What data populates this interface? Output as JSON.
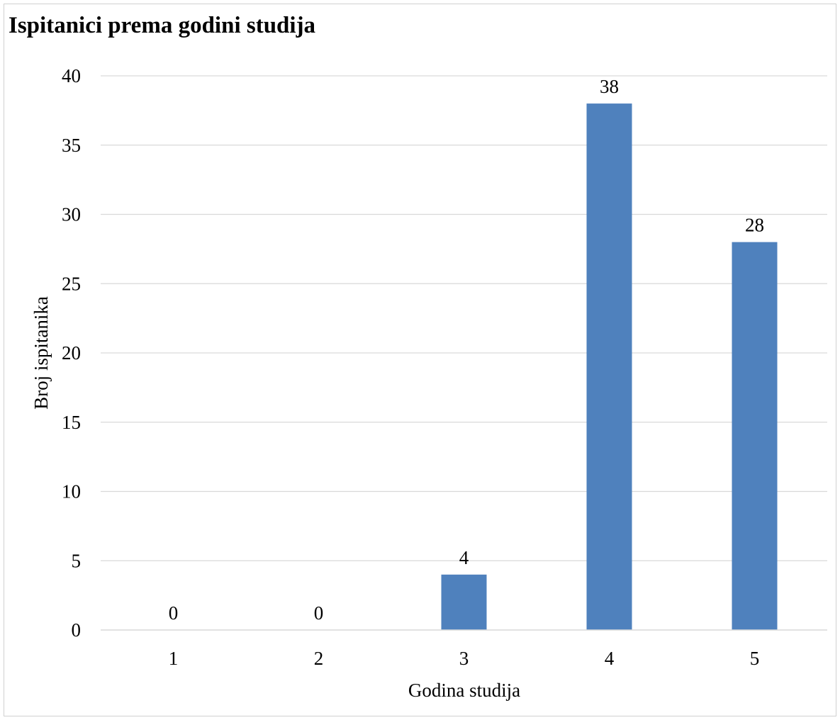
{
  "chart_data": {
    "type": "bar",
    "title": "Ispitanici prema godini studija",
    "xlabel": "Godina studija",
    "ylabel": "Broj ispitanika",
    "categories": [
      "1",
      "2",
      "3",
      "4",
      "5"
    ],
    "values": [
      0,
      0,
      4,
      38,
      28
    ],
    "data_labels": [
      "0",
      "0",
      "4",
      "38",
      "28"
    ],
    "ylim": [
      0,
      40
    ],
    "yticks": [
      0,
      5,
      10,
      15,
      20,
      25,
      30,
      35,
      40
    ],
    "grid": true,
    "legend": "none",
    "bar_color": "#4F81BD",
    "grid_color": "#D9D9D9"
  }
}
